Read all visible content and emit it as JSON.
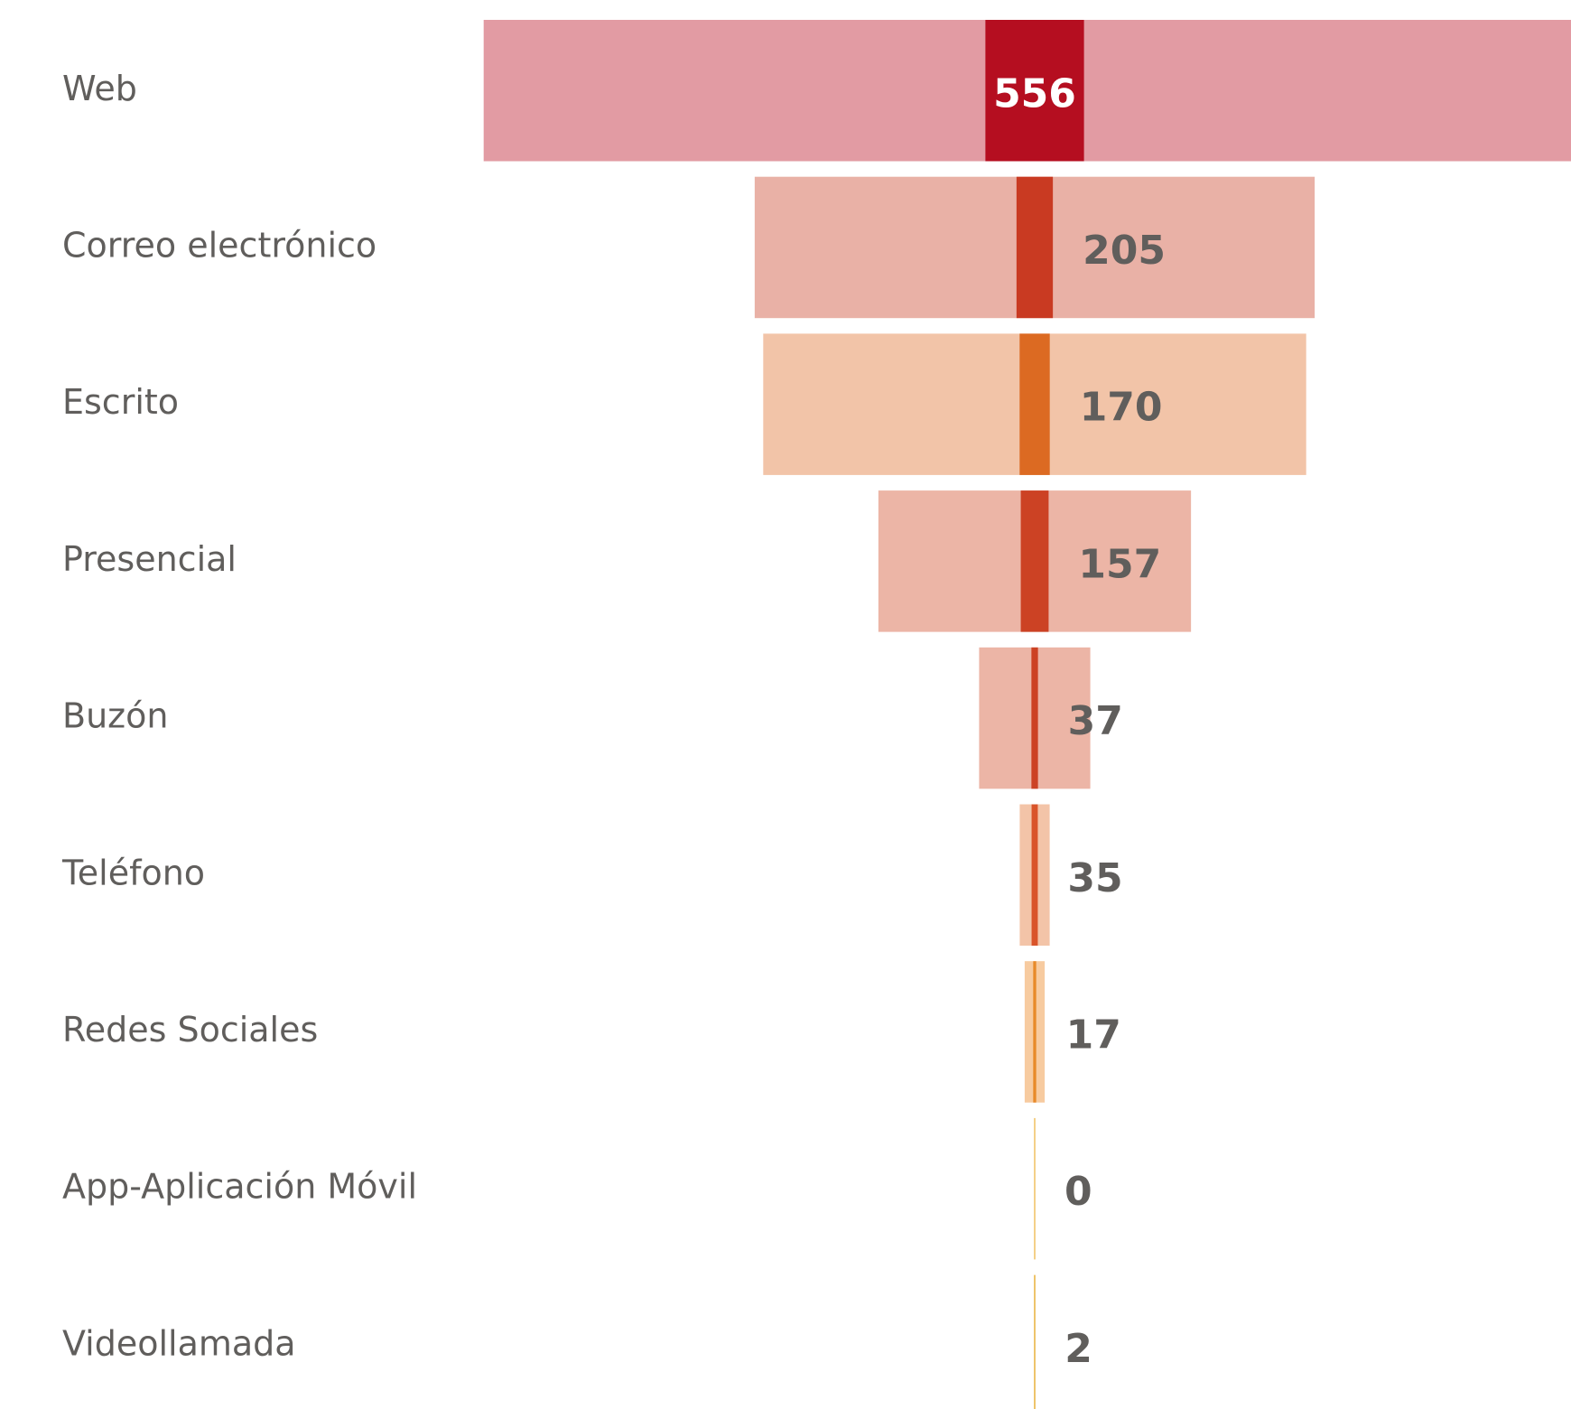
{
  "chart_data": {
    "type": "funnel",
    "categories": [
      "Web",
      "Correo electrónico",
      "Escrito",
      "Presencial",
      "Buzón",
      "Teléfono",
      "Redes Sociales",
      "App-Aplicación Móvil",
      "Videollamada"
    ],
    "series": [
      {
        "values": [
          556,
          205,
          170,
          157,
          37,
          35,
          17,
          0,
          2
        ],
        "colors": [
          "#b50e20",
          "#c93a22",
          "#dc6a22",
          "#cc4224",
          "#cc4224",
          "#d9542a",
          "#e88a2a",
          "#f0c060",
          "#e9b13a"
        ]
      },
      {
        "values": [
          6215,
          3158,
          3062,
          1763,
          627,
          169,
          113,
          0,
          0
        ],
        "colors": [
          "#e29ba3",
          "#e9b1a6",
          "#f2c4a8",
          "#ecb5a6",
          "#ecb5a6",
          "#f3c4a8",
          "#f7cba0",
          "#f7d9a0",
          "#f5d59a"
        ]
      }
    ]
  }
}
